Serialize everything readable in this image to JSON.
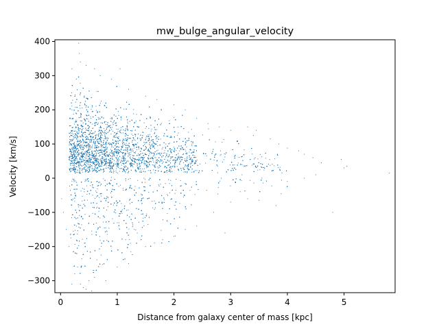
{
  "chart_data": {
    "type": "scatter",
    "title": "mw_bulge_angular_velocity",
    "xlabel": "Distance from galaxy center of mass [kpc]",
    "ylabel": "Velocity [km/s]",
    "xlim": [
      -0.1,
      5.9
    ],
    "ylim": [
      -335,
      405
    ],
    "xticks": [
      0,
      1,
      2,
      3,
      4,
      5
    ],
    "yticks": [
      -300,
      -200,
      -100,
      0,
      100,
      200,
      300,
      400
    ],
    "xtick_labels": [
      "0",
      "1",
      "2",
      "3",
      "4",
      "5"
    ],
    "ytick_labels": [
      "−300",
      "−200",
      "−100",
      "0",
      "100",
      "200",
      "300",
      "400"
    ],
    "grid": false,
    "legend": "none",
    "marker_color": "#1f77b4",
    "series": [
      {
        "points": [
          [
            0.2,
            320
          ],
          [
            0.35,
            340
          ],
          [
            0.32,
            395
          ],
          [
            0.33,
            365
          ],
          [
            0.28,
            290
          ],
          [
            0.45,
            330
          ],
          [
            0.6,
            320
          ],
          [
            1.05,
            320
          ],
          [
            0.7,
            300
          ],
          [
            0.9,
            290
          ],
          [
            1.2,
            260
          ],
          [
            1.5,
            240
          ],
          [
            1.7,
            230
          ],
          [
            2.0,
            215
          ],
          [
            2.2,
            200
          ],
          [
            2.4,
            175
          ],
          [
            2.6,
            160
          ],
          [
            2.8,
            150
          ],
          [
            3.0,
            140
          ],
          [
            3.3,
            150
          ],
          [
            3.45,
            140
          ],
          [
            3.4,
            125
          ],
          [
            3.7,
            115
          ],
          [
            3.85,
            100
          ],
          [
            4.0,
            88
          ],
          [
            4.2,
            80
          ],
          [
            4.3,
            70
          ],
          [
            4.45,
            60
          ],
          [
            4.6,
            45
          ],
          [
            4.95,
            55
          ],
          [
            5.0,
            30
          ],
          [
            5.05,
            35
          ],
          [
            5.8,
            15
          ],
          [
            4.5,
            10
          ],
          [
            4.3,
            0
          ],
          [
            4.0,
            -10
          ],
          [
            3.8,
            -80
          ],
          [
            3.5,
            -65
          ],
          [
            3.3,
            -60
          ],
          [
            3.0,
            -70
          ],
          [
            2.9,
            -160
          ],
          [
            2.7,
            -100
          ],
          [
            2.4,
            -140
          ],
          [
            2.2,
            -150
          ],
          [
            2.0,
            -170
          ],
          [
            1.8,
            -180
          ],
          [
            1.5,
            -200
          ],
          [
            1.2,
            -250
          ],
          [
            1.0,
            -260
          ],
          [
            0.8,
            -300
          ],
          [
            0.6,
            -290
          ],
          [
            0.5,
            -300
          ],
          [
            0.4,
            -320
          ],
          [
            0.35,
            -310
          ],
          [
            0.2,
            -310
          ],
          [
            0.25,
            -280
          ],
          [
            0.15,
            -200
          ],
          [
            0.1,
            -150
          ],
          [
            0.05,
            -100
          ],
          [
            0.02,
            -60
          ],
          [
            4.8,
            -100
          ],
          [
            0.3,
            -260
          ],
          [
            0.55,
            -330
          ],
          [
            0.45,
            -325
          ],
          [
            1.15,
            -180
          ],
          [
            1.3,
            -150
          ],
          [
            3.55,
            0
          ],
          [
            3.2,
            10
          ],
          [
            2.95,
            25
          ]
        ]
      }
    ]
  }
}
